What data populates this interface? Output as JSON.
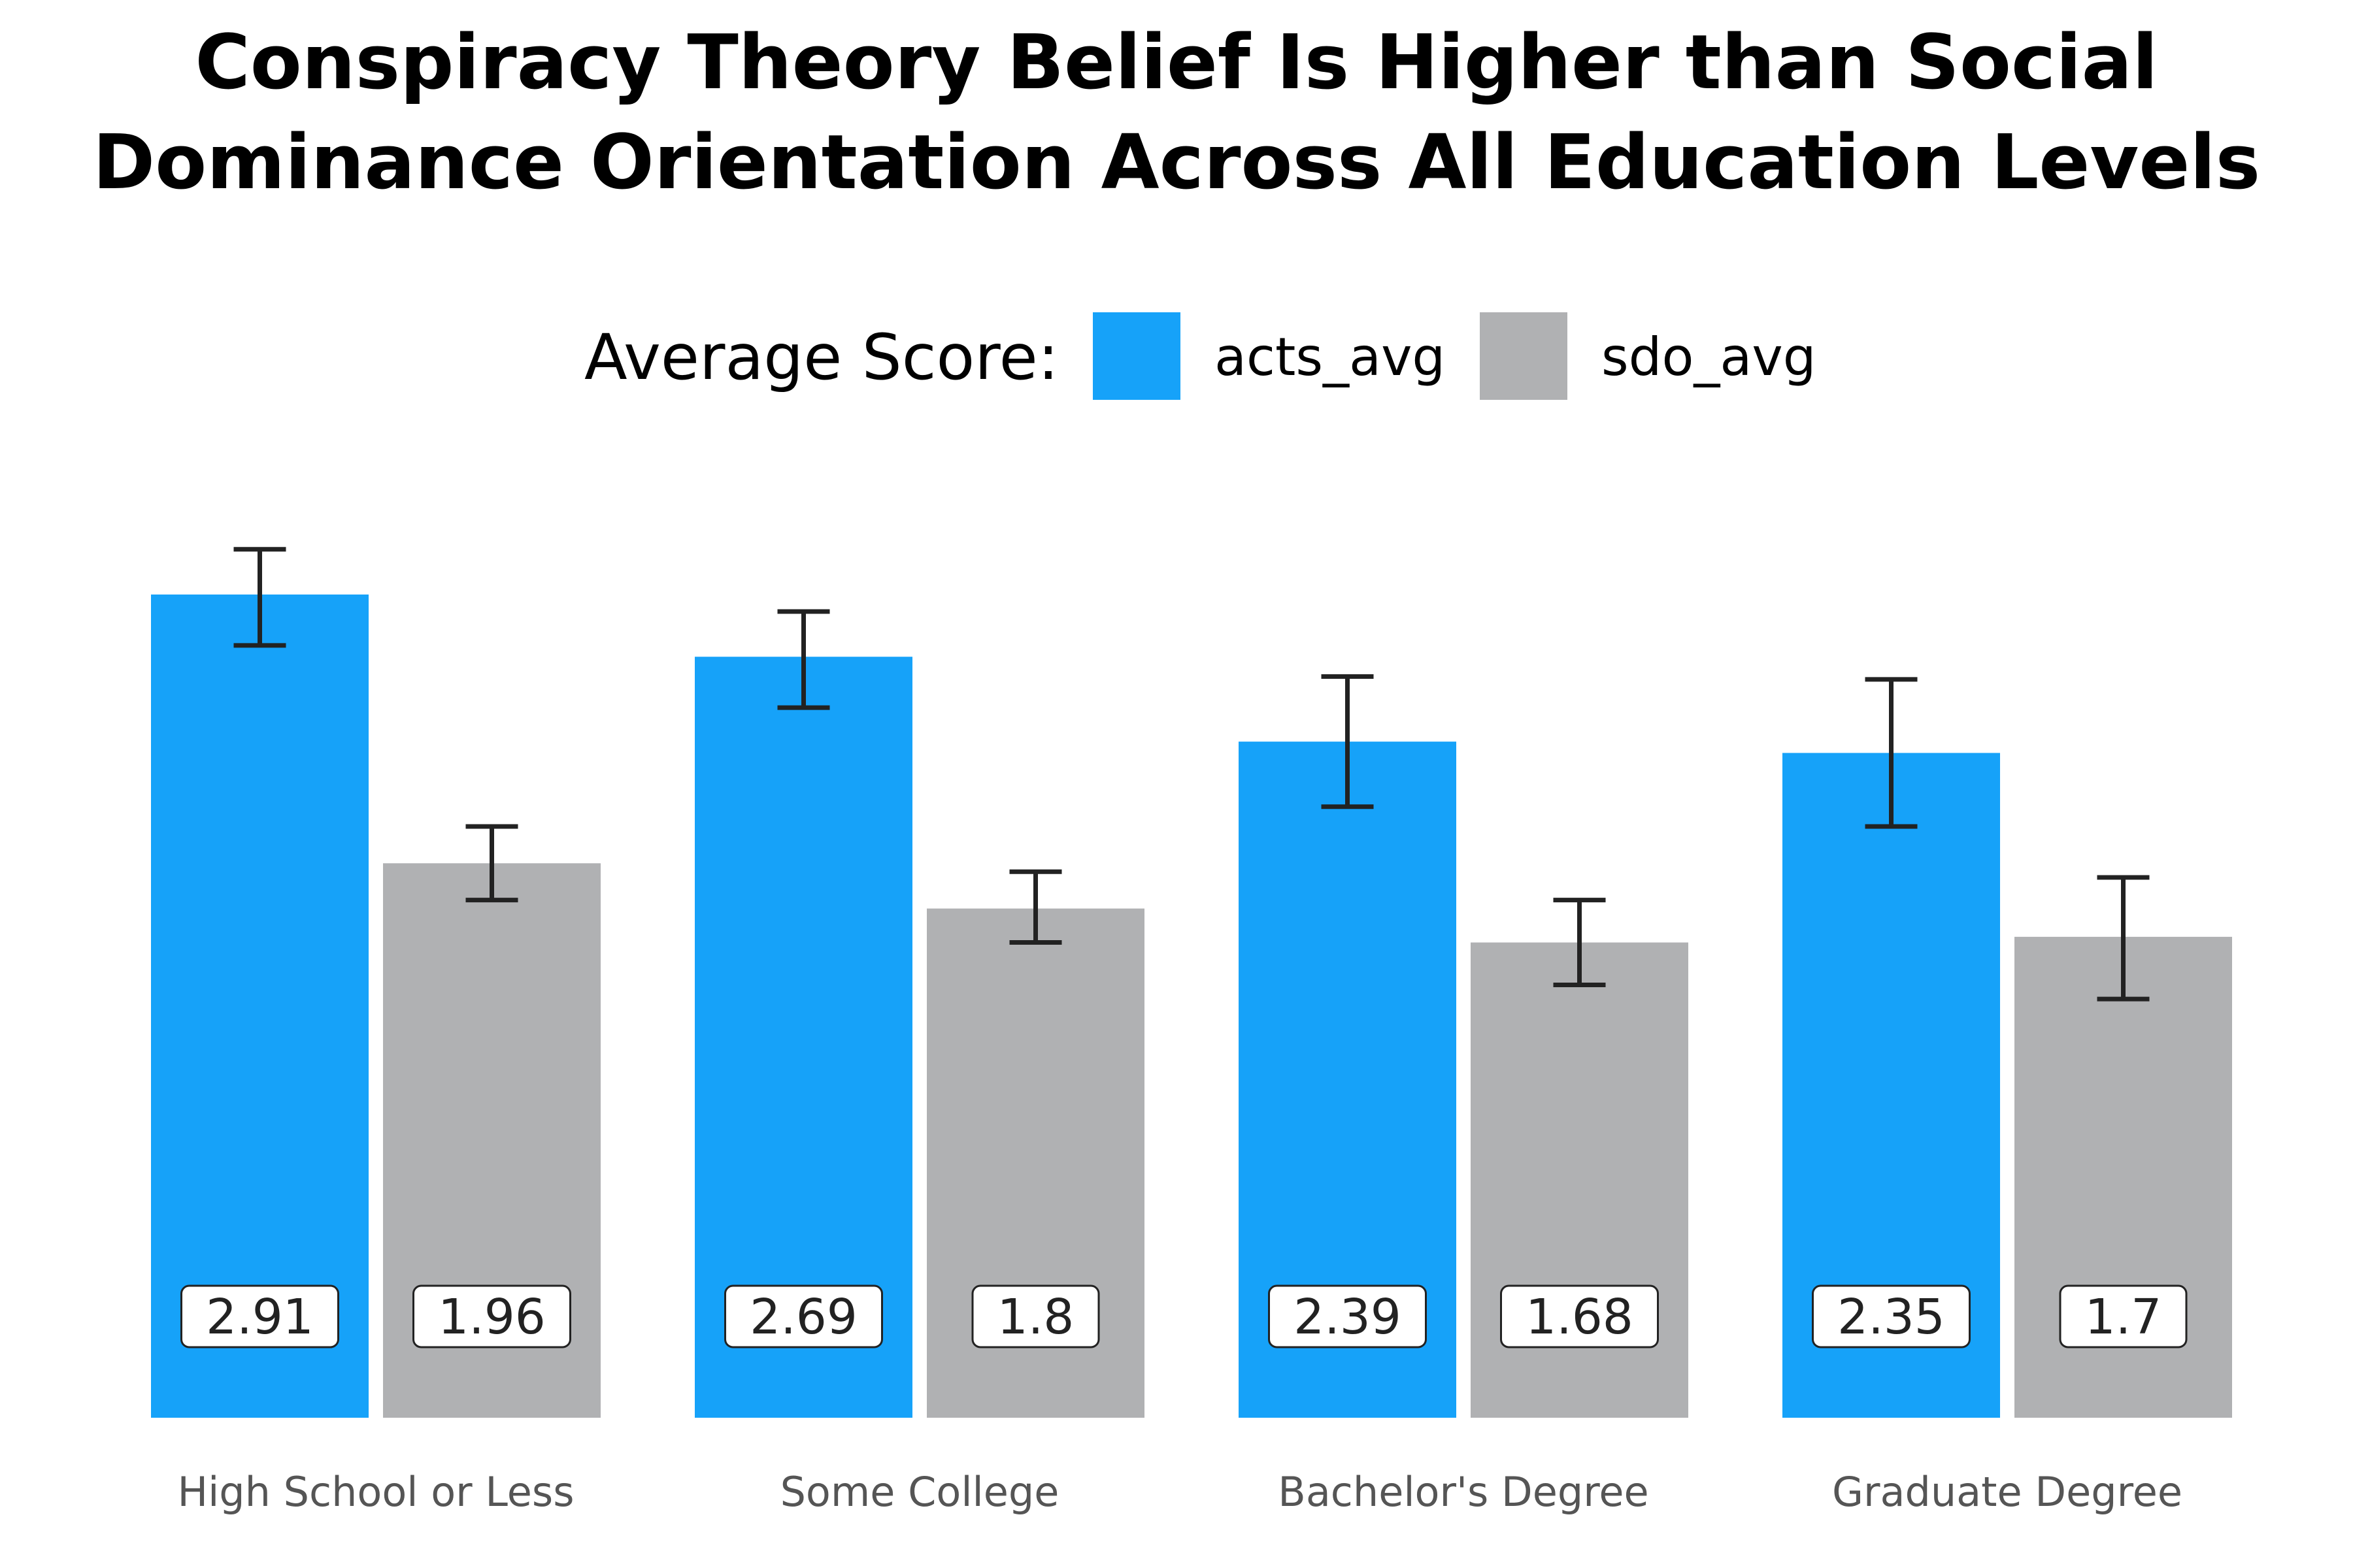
{
  "chart_data": {
    "type": "bar",
    "title_lines": [
      "Conspiracy Theory Belief Is Higher than Social",
      "Dominance Orientation Across All Education Levels"
    ],
    "legend": {
      "title": "Average Score:",
      "position": "top"
    },
    "categories": [
      "High School or Less",
      "Some College",
      "Bachelor's Degree",
      "Graduate Degree"
    ],
    "series": [
      {
        "name": "acts_avg",
        "color": "#16a2f9",
        "values": [
          2.91,
          2.69,
          2.39,
          2.35
        ],
        "value_labels": [
          "2.91",
          "2.69",
          "2.39",
          "2.35"
        ],
        "error_low": [
          2.73,
          2.51,
          2.16,
          2.09
        ],
        "error_high": [
          3.07,
          2.85,
          2.62,
          2.61
        ]
      },
      {
        "name": "sdo_avg",
        "color": "#b0b1b3",
        "values": [
          1.96,
          1.8,
          1.68,
          1.7
        ],
        "value_labels": [
          "1.96",
          "1.8",
          "1.68",
          "1.7"
        ],
        "error_low": [
          1.83,
          1.68,
          1.53,
          1.48
        ],
        "error_high": [
          2.09,
          1.93,
          1.83,
          1.91
        ]
      }
    ],
    "ylim": [
      0,
      3.3
    ],
    "grid": false,
    "y_axis_visible": false
  }
}
